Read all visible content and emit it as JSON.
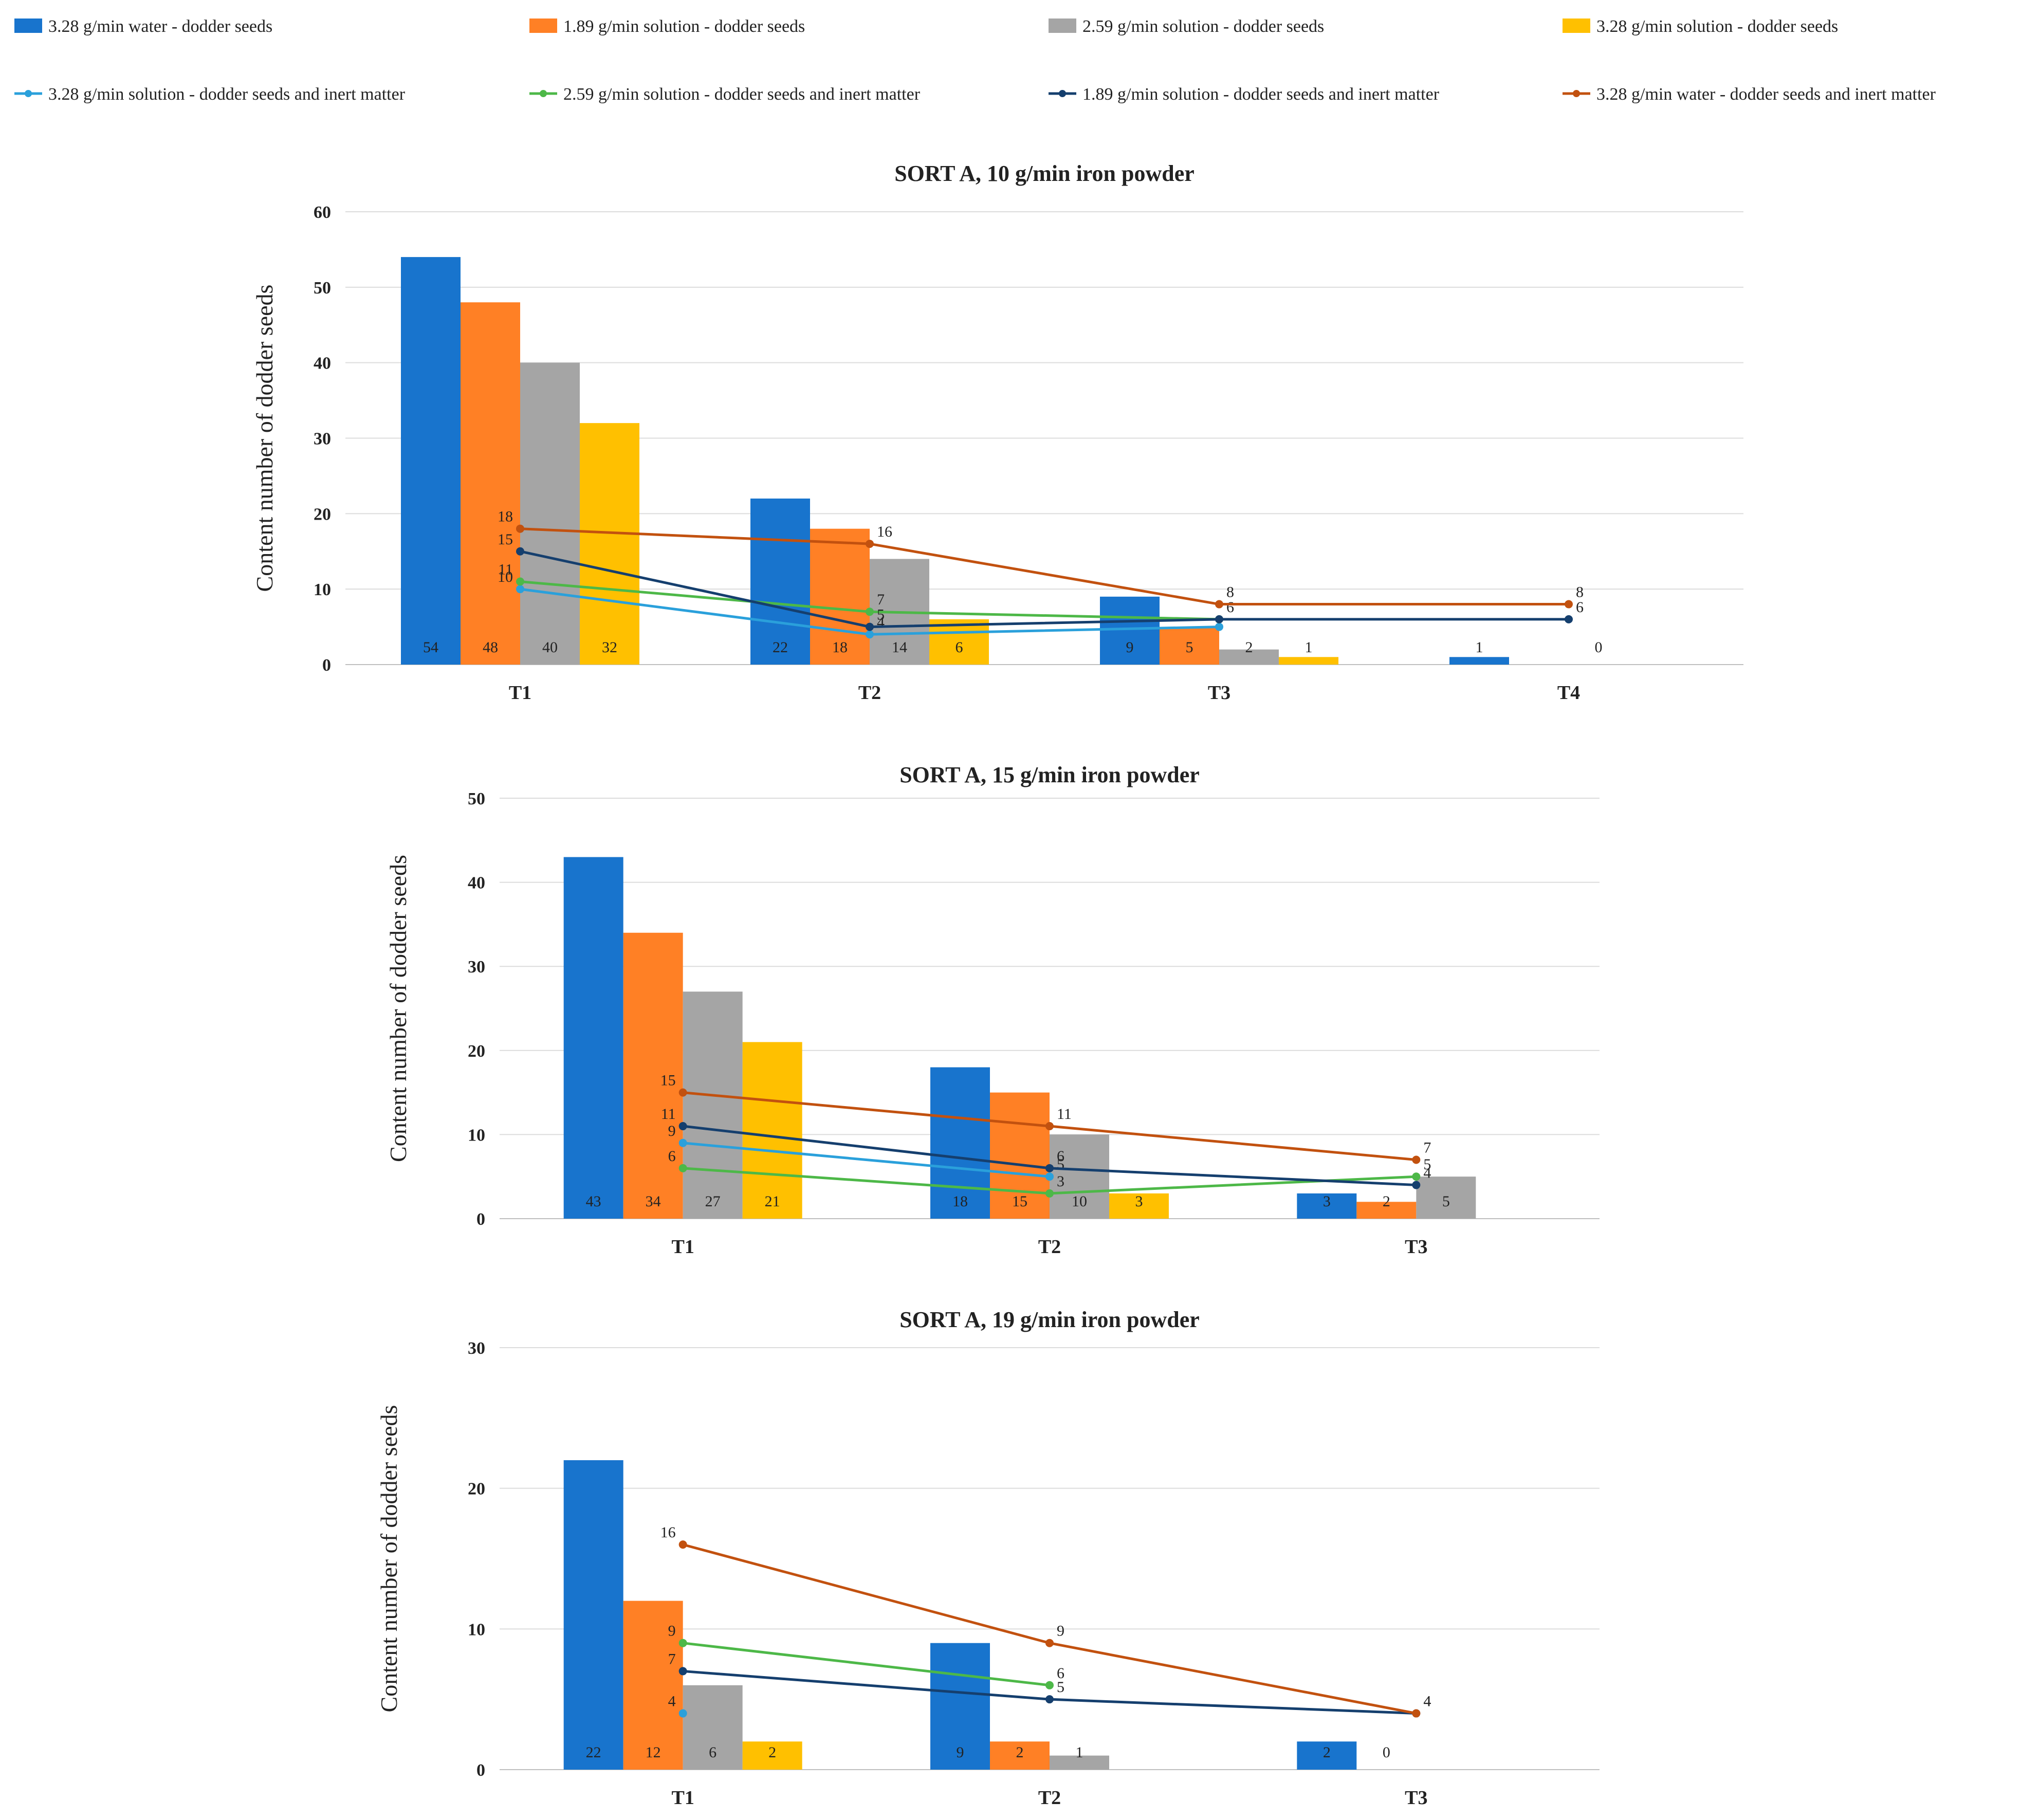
{
  "legend": {
    "bars": [
      {
        "name": "3.28 g/min water - dodder seeds",
        "color": "#1874CD"
      },
      {
        "name": "1.89 g/min solution - dodder seeds",
        "color": "#FF8025"
      },
      {
        "name": "2.59 g/min solution - dodder seeds",
        "color": "#A5A5A5"
      },
      {
        "name": "3.28 g/min solution - dodder seeds",
        "color": "#FFC000"
      }
    ],
    "lines": [
      {
        "name": "3.28 g/min solution - dodder seeds and inert matter",
        "color": "#2AA0DB"
      },
      {
        "name": "2.59 g/min solution - dodder seeds and inert matter",
        "color": "#4DB848"
      },
      {
        "name": "1.89 g/min solution - dodder seeds and inert matter",
        "color": "#153F6E"
      },
      {
        "name": "3.28 g/min water - dodder seeds and inert matter",
        "color": "#C2510F"
      }
    ]
  },
  "chart_data": [
    {
      "type": "bar",
      "title": "SORT A,  10 g/min iron powder",
      "ylabel": "Content number of dodder seeds",
      "xlabel": "",
      "ylim": [
        0,
        60
      ],
      "yticks": [
        0,
        10,
        20,
        30,
        40,
        50,
        60
      ],
      "categories": [
        "T1",
        "T2",
        "T3",
        "T4"
      ],
      "bar_series": [
        {
          "name": "3.28 g/min water - dodder seeds",
          "values": [
            54,
            22,
            9,
            1
          ],
          "labels": [
            "54",
            "22",
            "9",
            "1"
          ]
        },
        {
          "name": "1.89 g/min solution - dodder seeds",
          "values": [
            48,
            18,
            5,
            null
          ],
          "labels": [
            "48",
            "18",
            "5",
            ""
          ]
        },
        {
          "name": "2.59 g/min solution - dodder seeds",
          "values": [
            40,
            14,
            2,
            null
          ],
          "labels": [
            "40",
            "14",
            "2",
            "0"
          ]
        },
        {
          "name": "3.28 g/min solution - dodder seeds",
          "values": [
            32,
            6,
            1,
            null
          ],
          "labels": [
            "32",
            "6",
            "1",
            ""
          ]
        }
      ],
      "line_series": [
        {
          "name": "3.28 g/min solution - dodder seeds and inert matter",
          "values": [
            10,
            4,
            5,
            null
          ],
          "labels": [
            "10",
            "4",
            "",
            ""
          ]
        },
        {
          "name": "2.59 g/min solution - dodder seeds and inert matter",
          "values": [
            11,
            7,
            6,
            null
          ],
          "labels": [
            "11",
            "7",
            "",
            ""
          ]
        },
        {
          "name": "1.89 g/min solution - dodder seeds and inert matter",
          "values": [
            15,
            5,
            6,
            6
          ],
          "labels": [
            "15",
            "5",
            "6",
            "6"
          ]
        },
        {
          "name": "3.28 g/min water - dodder seeds and inert matter",
          "values": [
            18,
            16,
            8,
            8
          ],
          "labels": [
            "18",
            "16",
            "8",
            "8"
          ]
        }
      ]
    },
    {
      "type": "bar",
      "title": "SORT A,  15 g/min iron powder",
      "ylabel": "Content number of dodder seeds",
      "xlabel": "",
      "ylim": [
        0,
        50
      ],
      "yticks": [
        0,
        10,
        20,
        30,
        40,
        50
      ],
      "categories": [
        "T1",
        "T2",
        "T3"
      ],
      "bar_series": [
        {
          "name": "3.28 g/min water - dodder seeds",
          "values": [
            43,
            18,
            3
          ],
          "labels": [
            "43",
            "18",
            "3"
          ]
        },
        {
          "name": "1.89 g/min solution - dodder seeds",
          "values": [
            34,
            15,
            2
          ],
          "labels": [
            "34",
            "15",
            "2"
          ]
        },
        {
          "name": "2.59 g/min solution - dodder seeds",
          "values": [
            27,
            10,
            5
          ],
          "labels": [
            "27",
            "10",
            "5"
          ]
        },
        {
          "name": "3.28 g/min solution - dodder seeds",
          "values": [
            21,
            3,
            null
          ],
          "labels": [
            "21",
            "3",
            ""
          ]
        }
      ],
      "line_series": [
        {
          "name": "3.28 g/min solution - dodder seeds and inert matter",
          "values": [
            9,
            5,
            null
          ],
          "labels": [
            "9",
            "5",
            ""
          ]
        },
        {
          "name": "2.59 g/min solution - dodder seeds and inert matter",
          "values": [
            6,
            3,
            5
          ],
          "labels": [
            "6",
            "3",
            "5"
          ]
        },
        {
          "name": "1.89 g/min solution - dodder seeds and inert matter",
          "values": [
            11,
            6,
            4
          ],
          "labels": [
            "11",
            "6",
            "4"
          ]
        },
        {
          "name": "3.28 g/min water - dodder seeds and inert matter",
          "values": [
            15,
            11,
            7
          ],
          "labels": [
            "15",
            "11",
            "7"
          ]
        }
      ]
    },
    {
      "type": "bar",
      "title": "SORT A,  19 g/min iron powder",
      "ylabel": "Content number of dodder seeds",
      "xlabel": "",
      "ylim": [
        0,
        30
      ],
      "yticks": [
        0,
        10,
        20,
        30
      ],
      "categories": [
        "T1",
        "T2",
        "T3"
      ],
      "bar_series": [
        {
          "name": "3.28 g/min water - dodder seeds",
          "values": [
            22,
            9,
            2
          ],
          "labels": [
            "22",
            "9",
            "2"
          ]
        },
        {
          "name": "1.89 g/min solution - dodder seeds",
          "values": [
            12,
            2,
            null
          ],
          "labels": [
            "12",
            "2",
            "0"
          ]
        },
        {
          "name": "2.59 g/min solution - dodder seeds",
          "values": [
            6,
            1,
            null
          ],
          "labels": [
            "6",
            "1",
            ""
          ]
        },
        {
          "name": "3.28 g/min solution - dodder seeds",
          "values": [
            2,
            null,
            null
          ],
          "labels": [
            "2",
            "",
            ""
          ]
        }
      ],
      "line_series": [
        {
          "name": "3.28 g/min solution - dodder seeds and inert matter",
          "values": [
            4,
            null,
            null
          ],
          "labels": [
            "4",
            "",
            ""
          ]
        },
        {
          "name": "2.59 g/min solution - dodder seeds and inert matter",
          "values": [
            9,
            6,
            null
          ],
          "labels": [
            "9",
            "6",
            ""
          ]
        },
        {
          "name": "1.89 g/min solution - dodder seeds and inert matter",
          "values": [
            7,
            5,
            4
          ],
          "labels": [
            "7",
            "5",
            "4"
          ]
        },
        {
          "name": "3.28 g/min water - dodder seeds and inert matter",
          "values": [
            16,
            9,
            4
          ],
          "labels": [
            "16",
            "9",
            "4"
          ]
        }
      ]
    }
  ]
}
